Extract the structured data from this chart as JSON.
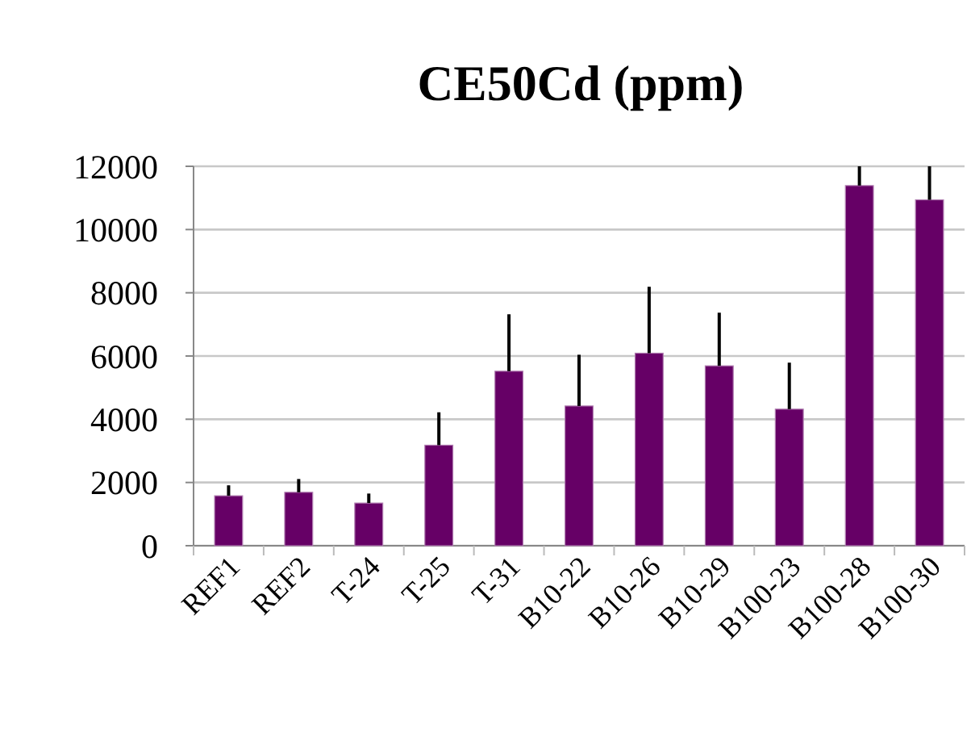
{
  "chart_data": {
    "type": "bar",
    "title": "CE50Cd (ppm)",
    "categories": [
      "REF1",
      "REF2",
      "T-24",
      "T-25",
      "T-31",
      "B10-22",
      "B10-26",
      "B10-29",
      "B100-23",
      "B100-28",
      "B100-30"
    ],
    "values": [
      1580,
      1690,
      1350,
      3180,
      5520,
      4420,
      6090,
      5690,
      4320,
      11390,
      10940
    ],
    "errors": [
      [
        1580,
        1910
      ],
      [
        1690,
        2110
      ],
      [
        1350,
        1650
      ],
      [
        3180,
        4220
      ],
      [
        5520,
        7320
      ],
      [
        4420,
        6040
      ],
      [
        6090,
        8190
      ],
      [
        5690,
        7370
      ],
      [
        4320,
        5790
      ],
      [
        11390,
        12000
      ],
      [
        10940,
        12000
      ]
    ],
    "color": "#660066",
    "ylim": [
      0,
      12000
    ],
    "yticks": [
      0,
      2000,
      4000,
      6000,
      8000,
      10000,
      12000
    ],
    "grid": "y"
  }
}
